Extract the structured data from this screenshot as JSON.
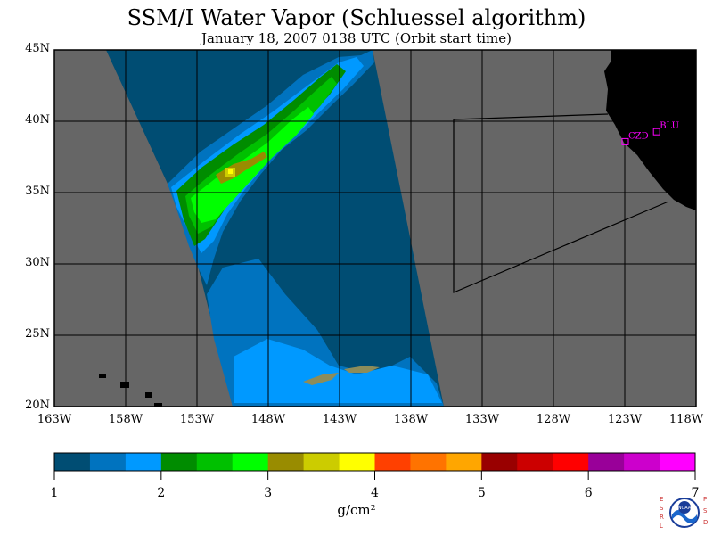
{
  "title": "SSM/I Water Vapor (Schluessel algorithm)",
  "subtitle": "January 18, 2007  0138 UTC  (Orbit start time)",
  "map": {
    "lon_range": [
      -163,
      -118
    ],
    "lat_range": [
      20,
      45
    ],
    "lat_ticks": [
      "45N",
      "40N",
      "35N",
      "30N",
      "25N",
      "20N"
    ],
    "lon_ticks": [
      "163W",
      "158W",
      "153W",
      "148W",
      "143W",
      "138W",
      "133W",
      "128W",
      "123W",
      "118W"
    ],
    "colors": {
      "background": "#666666",
      "land": "#000000",
      "grid": "#000000",
      "station": "#ff00ff"
    },
    "stations": [
      {
        "label": "CZD",
        "lon": -123.0,
        "lat": 38.6
      },
      {
        "label": "BLU",
        "lon": -120.8,
        "lat": 39.3
      }
    ]
  },
  "colorbar": {
    "ticks": [
      "1",
      "2",
      "3",
      "4",
      "5",
      "6",
      "7"
    ],
    "units": "g/cm²",
    "colors": [
      "#004d73",
      "#0073bf",
      "#0099ff",
      "#008c00",
      "#00c000",
      "#00ff00",
      "#998c00",
      "#cccc00",
      "#ffff00",
      "#ff4000",
      "#ff7300",
      "#ffa600",
      "#990000",
      "#cc0000",
      "#ff0000",
      "#990099",
      "#cc00cc",
      "#ff00ff"
    ]
  },
  "logo": {
    "left_text": "ESRL",
    "right_text": "PSD",
    "center_text": "NOAA"
  }
}
